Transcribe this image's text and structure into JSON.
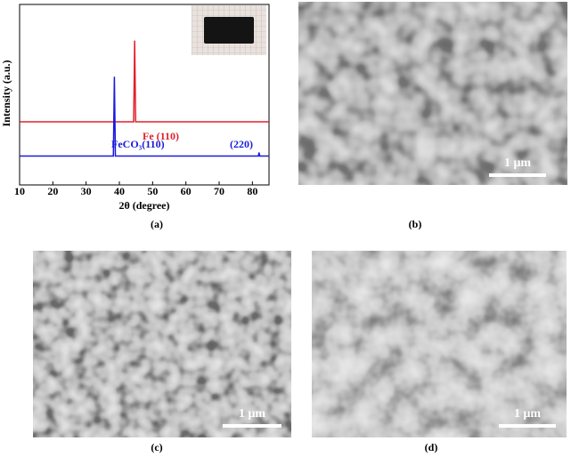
{
  "chart_data": {
    "type": "line",
    "xlabel": "2θ (degree)",
    "ylabel": "Intensity (a.u.)",
    "xlim": [
      10,
      85
    ],
    "xticks": [
      10,
      20,
      30,
      40,
      50,
      60,
      70,
      80
    ],
    "ylim": [
      0,
      100
    ],
    "series": [
      {
        "color": "#e0202a",
        "x": [
          10,
          44.3,
          44.6,
          44.9,
          85
        ],
        "values": [
          35,
          35,
          80,
          35,
          35
        ]
      },
      {
        "color": "#1a1adc",
        "x": [
          10,
          38.2,
          38.5,
          38.8,
          81.8,
          82.0,
          82.2,
          85
        ],
        "values": [
          16,
          16,
          60,
          16,
          16,
          18,
          16,
          16
        ]
      }
    ],
    "annotations": [
      "Fe  (110)",
      "FeCO₃(110)",
      "(220)"
    ]
  },
  "panels": {
    "labels": [
      "(a)",
      "(b)",
      "(c)",
      "(d)"
    ],
    "scale_bars": [
      "1 μm",
      "1 μm",
      "1 μm"
    ]
  }
}
